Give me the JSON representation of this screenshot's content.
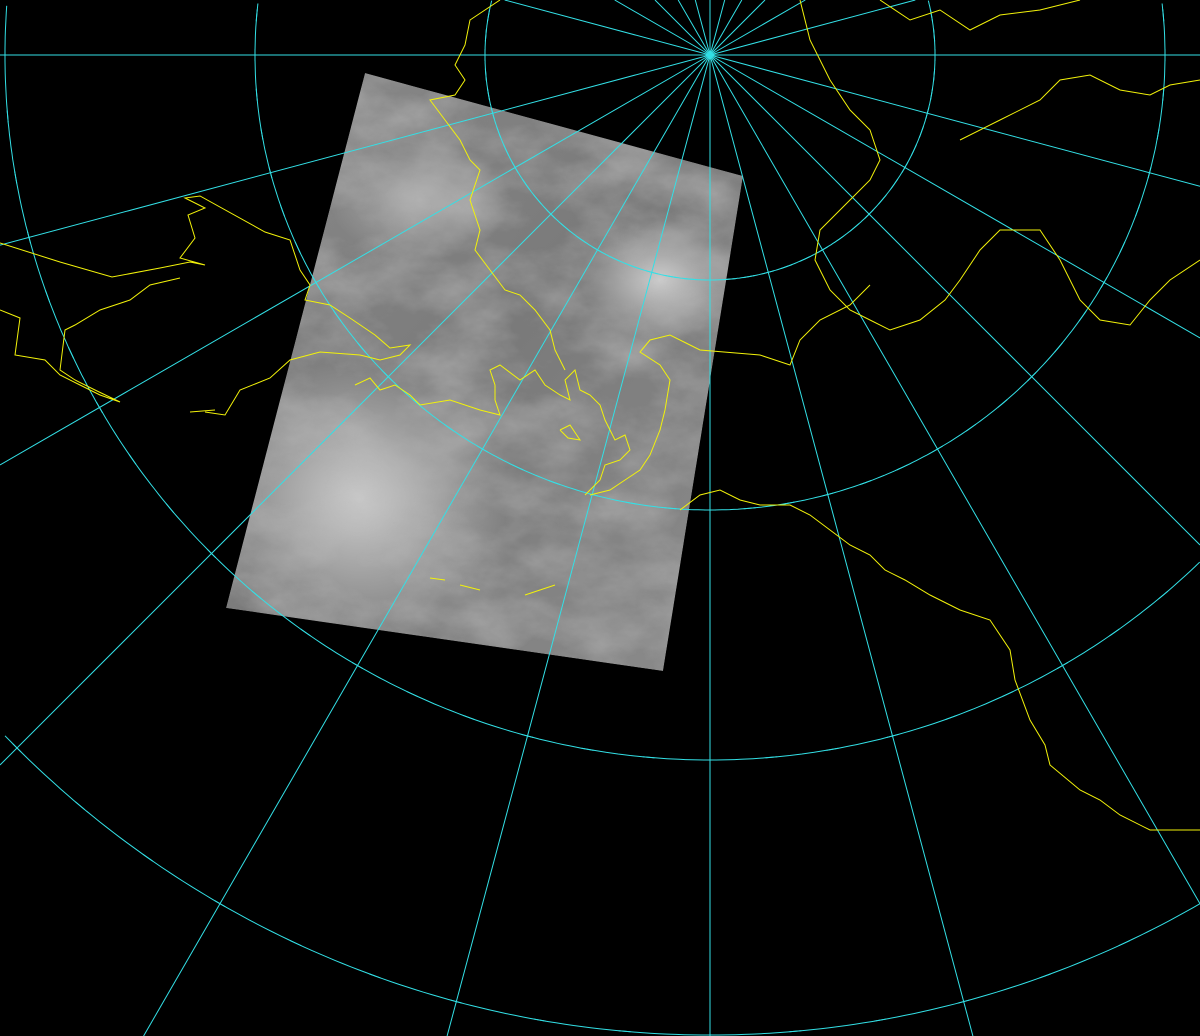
{
  "map": {
    "projection": "polar-stereographic",
    "background_color": "#000000",
    "graticule_color": "#33e0e6",
    "coastline_color": "#f2f20a",
    "meridian_spacing_deg": 15,
    "imagery": "satellite-cloud-imagery-grayscale"
  }
}
